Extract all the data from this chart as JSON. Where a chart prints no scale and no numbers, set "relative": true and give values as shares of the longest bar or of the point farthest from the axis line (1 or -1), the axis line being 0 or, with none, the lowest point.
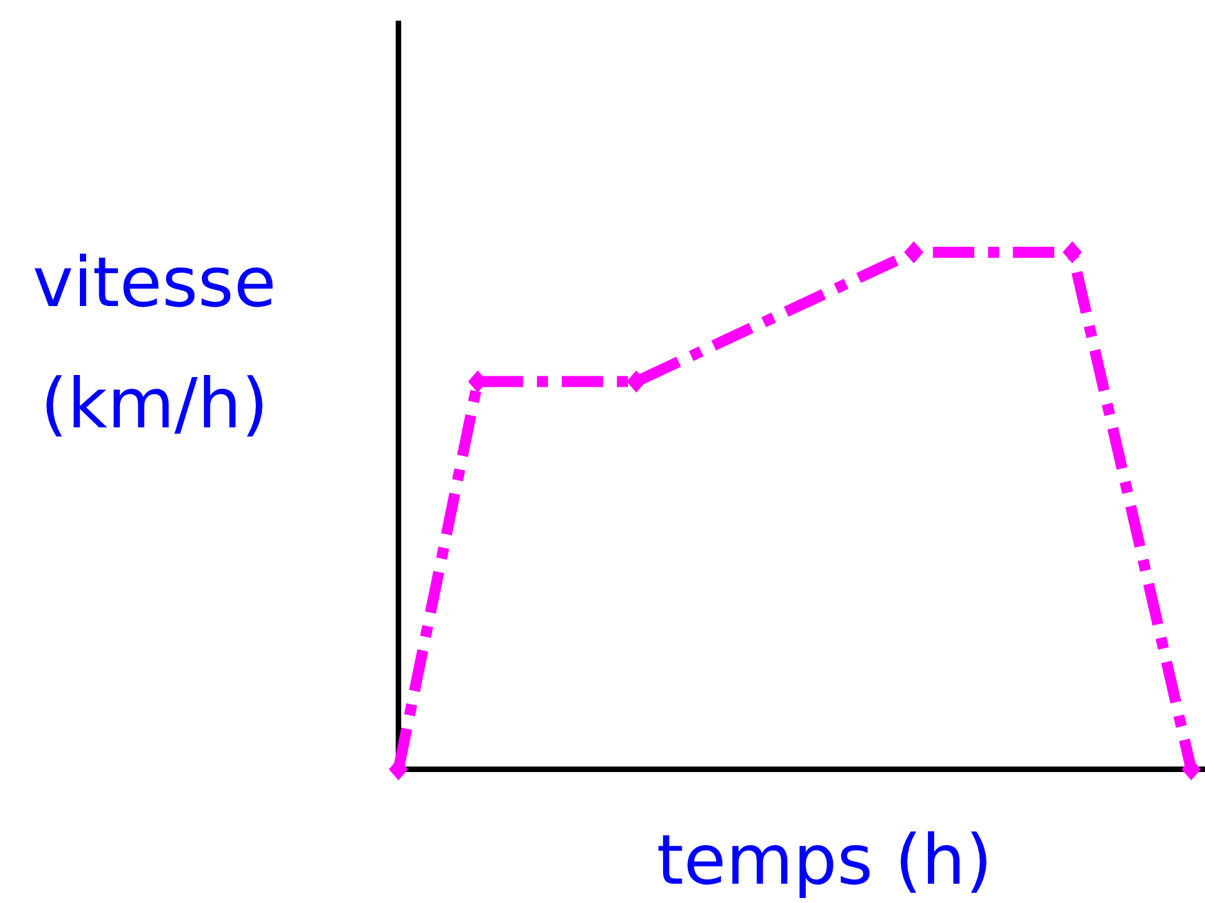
{
  "chart_data": {
    "type": "line",
    "relative": true,
    "xlabel": "temps (h)",
    "ylabel": "vitesse\n(km/h)",
    "categories": [
      null,
      null,
      null,
      null,
      null,
      null,
      null,
      null,
      null,
      null,
      null,
      null,
      null,
      null,
      null,
      null,
      null,
      null,
      null,
      null,
      null
    ],
    "marker": "diamond",
    "line_style": "dashed",
    "series": [
      {
        "color": "#ff00ff",
        "values": [
          0,
          null,
          0.75,
          null,
          null,
          null,
          0.75,
          null,
          null,
          null,
          null,
          null,
          null,
          1,
          null,
          null,
          null,
          1,
          null,
          null,
          0
        ]
      }
    ]
  }
}
